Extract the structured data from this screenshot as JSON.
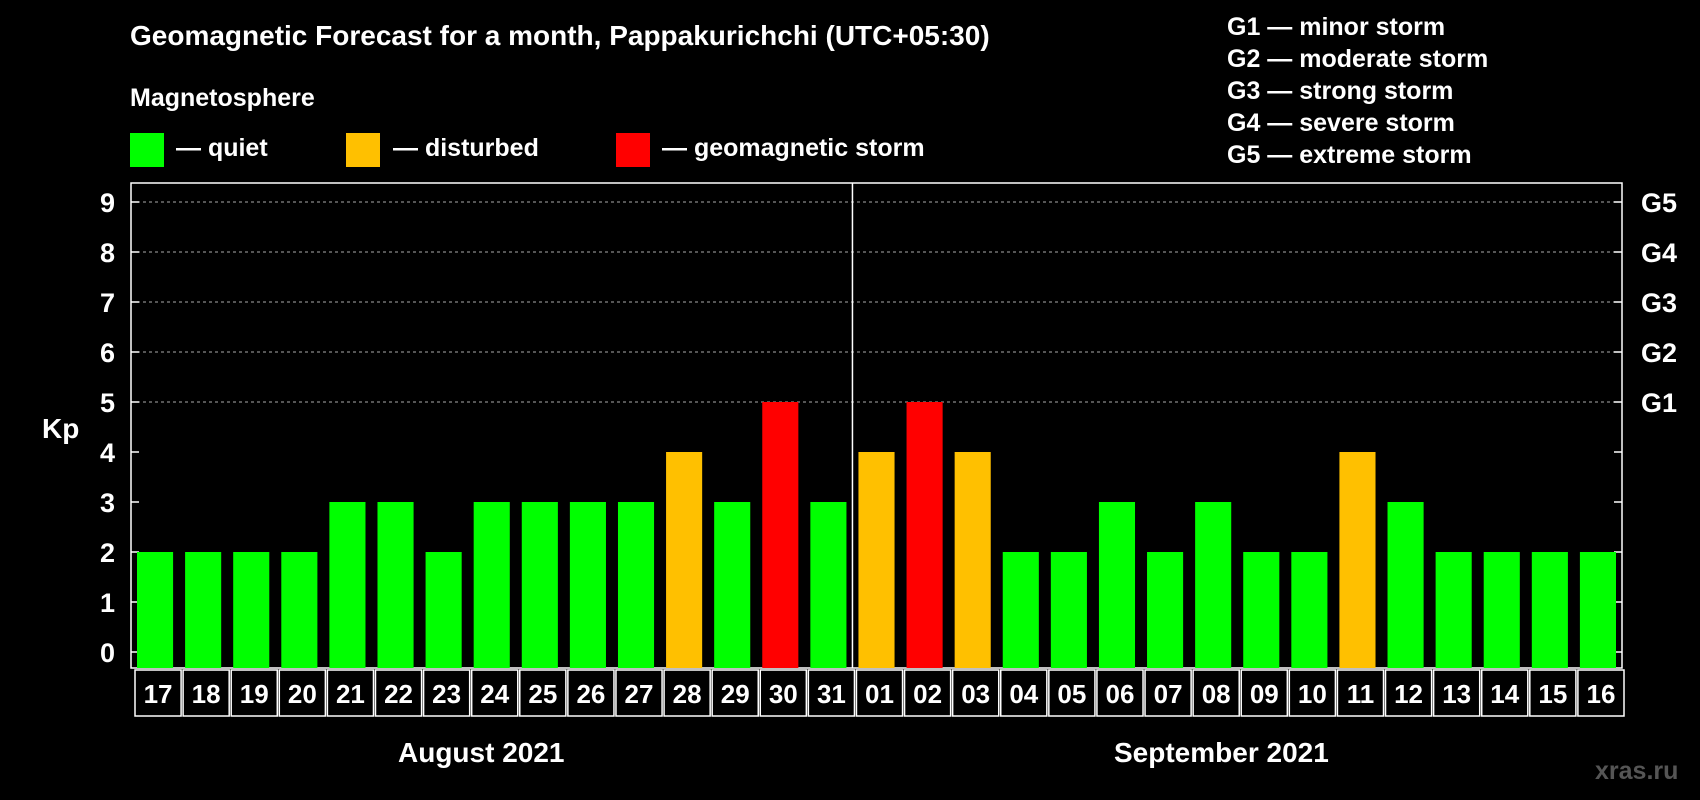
{
  "chart_data": {
    "type": "bar",
    "title": "Geomagnetic Forecast for a month, Pappakurichchi (UTC+05:30)",
    "subtitle": "Magnetosphere",
    "ylabel": "Kp",
    "ylim": [
      0,
      9
    ],
    "y_ticks": [
      "0",
      "1",
      "2",
      "3",
      "4",
      "5",
      "6",
      "7",
      "8",
      "9"
    ],
    "right_axis_labels": [
      {
        "kp": 5,
        "label": "G1"
      },
      {
        "kp": 6,
        "label": "G2"
      },
      {
        "kp": 7,
        "label": "G3"
      },
      {
        "kp": 8,
        "label": "G4"
      },
      {
        "kp": 9,
        "label": "G5"
      }
    ],
    "categories": [
      "17",
      "18",
      "19",
      "20",
      "21",
      "22",
      "23",
      "24",
      "25",
      "26",
      "27",
      "28",
      "29",
      "30",
      "31",
      "01",
      "02",
      "03",
      "04",
      "05",
      "06",
      "07",
      "08",
      "09",
      "10",
      "11",
      "12",
      "13",
      "14",
      "15",
      "16"
    ],
    "values": [
      2,
      2,
      2,
      2,
      3,
      3,
      2,
      3,
      3,
      3,
      3,
      4,
      3,
      5,
      3,
      4,
      5,
      4,
      2,
      2,
      3,
      2,
      3,
      2,
      2,
      4,
      3,
      2,
      2,
      2,
      2
    ],
    "months": [
      {
        "label": "August 2021",
        "start_index": 0,
        "count": 15
      },
      {
        "label": "September 2021",
        "start_index": 15,
        "count": 16
      }
    ],
    "legend": [
      {
        "label": "— quiet",
        "color": "#00ff00"
      },
      {
        "label": "— disturbed",
        "color": "#ffc000"
      },
      {
        "label": "— geomagnetic storm",
        "color": "#ff0000"
      }
    ],
    "storm_scale": [
      "G1 — minor storm",
      "G2 — moderate storm",
      "G3 — strong storm",
      "G4 — severe storm",
      "G5 — extreme storm"
    ],
    "colors": {
      "quiet": "#00ff00",
      "disturbed": "#ffc000",
      "storm": "#ff0000"
    }
  },
  "watermark": "xras.ru"
}
